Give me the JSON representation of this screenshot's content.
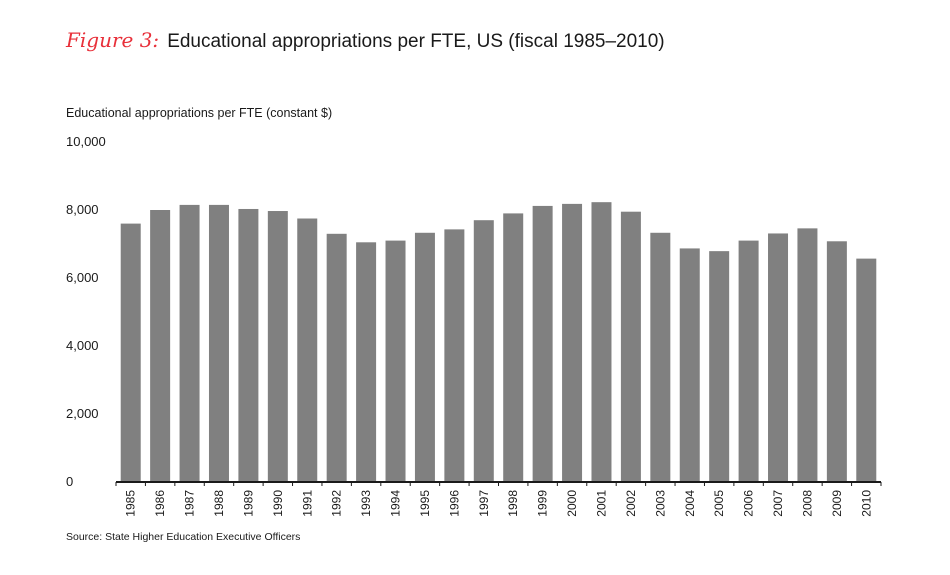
{
  "figure": {
    "label": "Figure 3:",
    "title": "Educational appropriations per FTE, US (fiscal 1985–2010)"
  },
  "source": "Source: State Higher Education Executive Officers",
  "colors": {
    "bar": "#808080",
    "axis": "#1a1a1a",
    "accent": "#e8303a"
  },
  "chart_data": {
    "type": "bar",
    "title": "Educational appropriations per FTE, US (fiscal 1985–2010)",
    "ylabel": "Educational appropriations per FTE (constant $)",
    "xlabel": "",
    "ylim": [
      0,
      10000
    ],
    "grid": false,
    "yticks": [
      {
        "value": 0,
        "label": "0"
      },
      {
        "value": 2000,
        "label": "2,000"
      },
      {
        "value": 4000,
        "label": "4,000"
      },
      {
        "value": 6000,
        "label": "6,000"
      },
      {
        "value": 8000,
        "label": "8,000"
      },
      {
        "value": 10000,
        "label": "10,000"
      }
    ],
    "categories": [
      "1985",
      "1986",
      "1987",
      "1988",
      "1989",
      "1990",
      "1991",
      "1992",
      "1993",
      "1994",
      "1995",
      "1996",
      "1997",
      "1998",
      "1999",
      "2000",
      "2001",
      "2002",
      "2003",
      "2004",
      "2005",
      "2006",
      "2007",
      "2008",
      "2009",
      "2010"
    ],
    "values": [
      7600,
      8000,
      8150,
      8150,
      8030,
      7970,
      7750,
      7300,
      7050,
      7100,
      7330,
      7430,
      7700,
      7900,
      8120,
      8180,
      8230,
      7950,
      7330,
      6870,
      6790,
      7100,
      7310,
      7460,
      7080,
      6570
    ]
  }
}
